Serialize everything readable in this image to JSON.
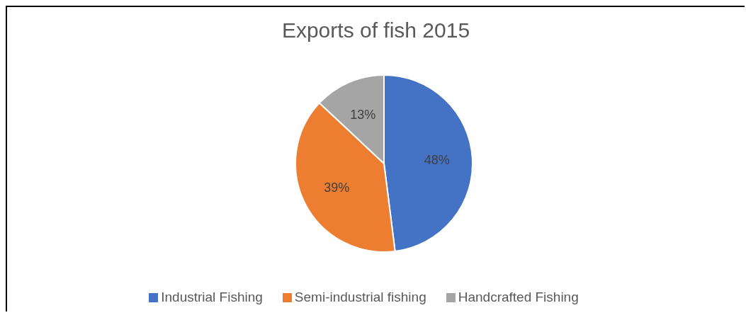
{
  "chart_data": {
    "type": "pie",
    "title": "Exports of fish 2015",
    "categories": [
      "Industrial Fishing",
      "Semi-industrial fishing",
      "Handcrafted Fishing"
    ],
    "values": [
      48,
      39,
      13
    ],
    "colors": [
      "#4472c4",
      "#ed7d31",
      "#a5a5a5"
    ],
    "value_labels": [
      "48%",
      "39%",
      "13%"
    ],
    "legend": "bottom"
  }
}
